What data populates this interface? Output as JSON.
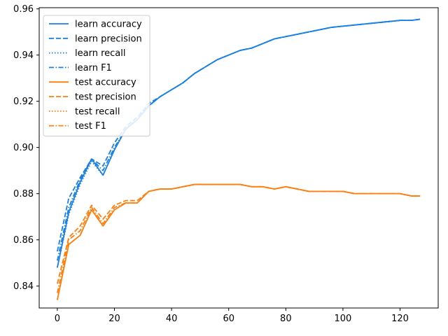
{
  "chart_data": {
    "type": "line",
    "title": "",
    "xlabel": "",
    "ylabel": "",
    "xlim": [
      -6.35,
      133.35
    ],
    "ylim": [
      0.8305,
      0.9605
    ],
    "xticks": [
      0,
      20,
      40,
      60,
      80,
      100,
      120
    ],
    "xtick_labels": [
      "0",
      "20",
      "40",
      "60",
      "80",
      "100",
      "120"
    ],
    "yticks": [
      0.84,
      0.86,
      0.88,
      0.9,
      0.92,
      0.94,
      0.96
    ],
    "ytick_labels": [
      "0.84",
      "0.86",
      "0.88",
      "0.90",
      "0.92",
      "0.94",
      "0.96"
    ],
    "grid": false,
    "legend_position": "upper-left",
    "colors": {
      "learn": "#1a80e6",
      "test": "#ff7f0e"
    },
    "x": [
      0,
      4,
      8,
      12,
      16,
      20,
      24,
      28,
      32,
      36,
      40,
      44,
      48,
      52,
      56,
      60,
      64,
      68,
      72,
      76,
      80,
      84,
      88,
      92,
      96,
      100,
      104,
      108,
      112,
      116,
      120,
      124,
      127
    ],
    "series": [
      {
        "name": "learn accuracy",
        "color": "#1a80e6",
        "dash": "solid",
        "values": [
          0.848,
          0.872,
          0.885,
          0.895,
          0.888,
          0.899,
          0.908,
          0.912,
          0.918,
          0.922,
          0.925,
          0.928,
          0.932,
          0.935,
          0.938,
          0.94,
          0.942,
          0.943,
          0.945,
          0.947,
          0.948,
          0.949,
          0.95,
          0.951,
          0.952,
          0.9525,
          0.953,
          0.9535,
          0.954,
          0.9545,
          0.955,
          0.955,
          0.9555
        ]
      },
      {
        "name": "learn precision",
        "color": "#1a80e6",
        "dash": "dashed",
        "values": [
          0.855,
          0.878,
          0.887,
          0.895,
          0.892,
          0.902,
          0.909,
          0.913,
          0.919,
          0.922,
          0.925,
          0.928,
          0.932,
          0.935,
          0.938,
          0.94,
          0.942,
          0.943,
          0.945,
          0.947,
          0.948,
          0.949,
          0.95,
          0.951,
          0.952,
          0.9525,
          0.953,
          0.9535,
          0.954,
          0.9545,
          0.955,
          0.955,
          0.9555
        ]
      },
      {
        "name": "learn recall",
        "color": "#1a80e6",
        "dash": "dotted",
        "values": [
          0.848,
          0.871,
          0.884,
          0.894,
          0.888,
          0.899,
          0.908,
          0.912,
          0.918,
          0.922,
          0.925,
          0.928,
          0.932,
          0.935,
          0.938,
          0.94,
          0.942,
          0.943,
          0.945,
          0.947,
          0.948,
          0.949,
          0.95,
          0.951,
          0.952,
          0.9525,
          0.953,
          0.9535,
          0.954,
          0.9545,
          0.955,
          0.955,
          0.9555
        ]
      },
      {
        "name": "learn F1",
        "color": "#1a80e6",
        "dash": "dashdot",
        "values": [
          0.851,
          0.874,
          0.886,
          0.895,
          0.89,
          0.9,
          0.908,
          0.912,
          0.918,
          0.922,
          0.925,
          0.928,
          0.932,
          0.935,
          0.938,
          0.94,
          0.942,
          0.943,
          0.945,
          0.947,
          0.948,
          0.949,
          0.95,
          0.951,
          0.952,
          0.9525,
          0.953,
          0.9535,
          0.954,
          0.9545,
          0.955,
          0.955,
          0.9555
        ]
      },
      {
        "name": "test accuracy",
        "color": "#ff7f0e",
        "dash": "solid",
        "values": [
          0.834,
          0.858,
          0.862,
          0.873,
          0.866,
          0.873,
          0.876,
          0.876,
          0.881,
          0.882,
          0.882,
          0.883,
          0.884,
          0.884,
          0.884,
          0.884,
          0.884,
          0.883,
          0.883,
          0.882,
          0.883,
          0.882,
          0.881,
          0.881,
          0.881,
          0.881,
          0.88,
          0.88,
          0.88,
          0.88,
          0.88,
          0.879,
          0.879
        ]
      },
      {
        "name": "test precision",
        "color": "#ff7f0e",
        "dash": "dashed",
        "values": [
          0.841,
          0.861,
          0.866,
          0.875,
          0.869,
          0.875,
          0.877,
          0.877,
          0.881,
          0.882,
          0.882,
          0.883,
          0.884,
          0.884,
          0.884,
          0.884,
          0.884,
          0.883,
          0.883,
          0.882,
          0.883,
          0.882,
          0.881,
          0.881,
          0.881,
          0.881,
          0.88,
          0.88,
          0.88,
          0.88,
          0.88,
          0.879,
          0.879
        ]
      },
      {
        "name": "test recall",
        "color": "#ff7f0e",
        "dash": "dotted",
        "values": [
          0.834,
          0.858,
          0.862,
          0.873,
          0.866,
          0.873,
          0.876,
          0.876,
          0.881,
          0.882,
          0.882,
          0.883,
          0.884,
          0.884,
          0.884,
          0.884,
          0.884,
          0.883,
          0.883,
          0.882,
          0.883,
          0.882,
          0.881,
          0.881,
          0.881,
          0.881,
          0.88,
          0.88,
          0.88,
          0.88,
          0.88,
          0.879,
          0.879
        ]
      },
      {
        "name": "test F1",
        "color": "#ff7f0e",
        "dash": "dashdot",
        "values": [
          0.837,
          0.86,
          0.864,
          0.874,
          0.867,
          0.874,
          0.876,
          0.876,
          0.881,
          0.882,
          0.882,
          0.883,
          0.884,
          0.884,
          0.884,
          0.884,
          0.884,
          0.883,
          0.883,
          0.882,
          0.883,
          0.882,
          0.881,
          0.881,
          0.881,
          0.881,
          0.88,
          0.88,
          0.88,
          0.88,
          0.88,
          0.879,
          0.879
        ]
      }
    ]
  }
}
